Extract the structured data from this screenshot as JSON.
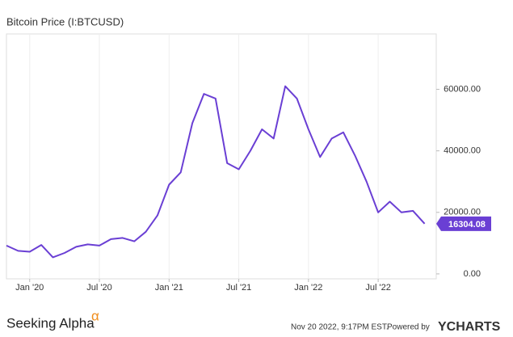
{
  "chart_data": {
    "type": "line",
    "title": "Bitcoin Price (I:BTCUSD)",
    "x": [
      "2019-11",
      "2019-12",
      "2020-01",
      "2020-02",
      "2020-03",
      "2020-04",
      "2020-05",
      "2020-06",
      "2020-07",
      "2020-08",
      "2020-09",
      "2020-10",
      "2020-11",
      "2020-12",
      "2021-01",
      "2021-02",
      "2021-03",
      "2021-04",
      "2021-05",
      "2021-06",
      "2021-07",
      "2021-08",
      "2021-09",
      "2021-10",
      "2021-11",
      "2021-12",
      "2022-01",
      "2022-02",
      "2022-03",
      "2022-04",
      "2022-05",
      "2022-06",
      "2022-07",
      "2022-08",
      "2022-09",
      "2022-10",
      "2022-11"
    ],
    "series": [
      {
        "name": "Bitcoin Price",
        "color": "#6a3fd4",
        "values": [
          9200,
          7500,
          7200,
          9400,
          5400,
          6800,
          8800,
          9600,
          9200,
          11300,
          11700,
          10600,
          13700,
          19000,
          29000,
          33000,
          49000,
          58500,
          57000,
          36000,
          34000,
          40000,
          47000,
          44000,
          61000,
          57000,
          47000,
          38000,
          44000,
          46000,
          38500,
          30000,
          20000,
          23500,
          20000,
          20500,
          16304.08
        ]
      }
    ],
    "xlim": [
      "2019-11",
      "2022-12"
    ],
    "xticks": [
      {
        "value": "2020-01",
        "label": "Jan '20"
      },
      {
        "value": "2020-07",
        "label": "Jul '20"
      },
      {
        "value": "2021-01",
        "label": "Jan '21"
      },
      {
        "value": "2021-07",
        "label": "Jul '21"
      },
      {
        "value": "2022-01",
        "label": "Jan '22"
      },
      {
        "value": "2022-07",
        "label": "Jul '22"
      }
    ],
    "ylim": [
      -1600,
      78000
    ],
    "yticks": [
      {
        "value": 0,
        "label": "0.00"
      },
      {
        "value": 20000,
        "label": "20000.00"
      },
      {
        "value": 40000,
        "label": "40000.00"
      },
      {
        "value": 60000,
        "label": "60000.00"
      }
    ],
    "grid": true
  },
  "footer": {
    "brand": "Seeking Alpha",
    "brand_symbol": "α",
    "timestamp": "Nov 20 2022, 9:17PM EST.",
    "powered_by": "Powered by",
    "provider": "YCHARTS"
  }
}
